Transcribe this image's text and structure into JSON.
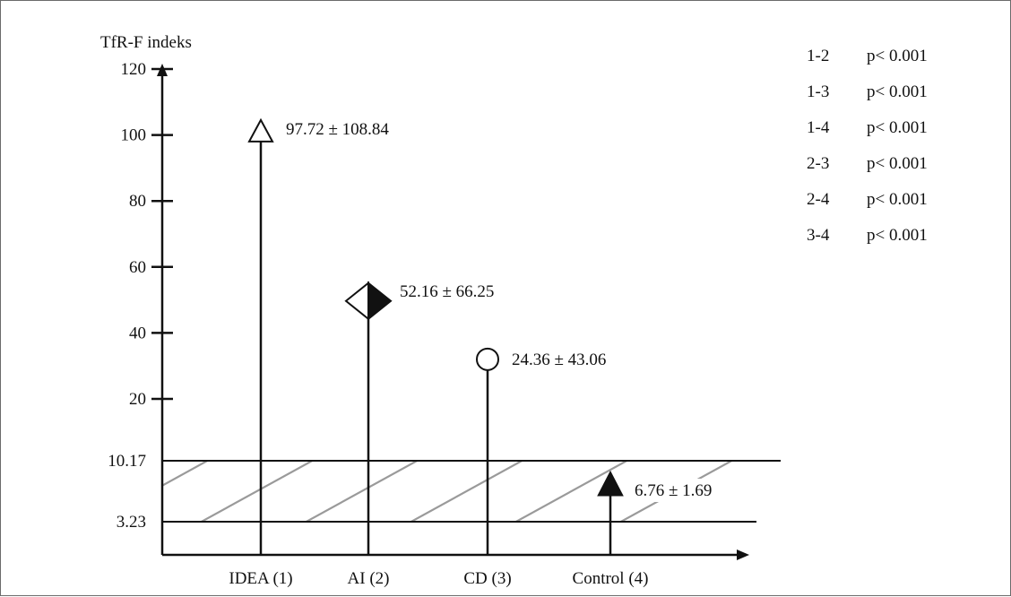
{
  "chart_data": {
    "type": "scatter",
    "ylabel": "TfR-F indeks",
    "yticks": [
      20,
      40,
      60,
      80,
      100,
      120
    ],
    "ylim": [
      0,
      120
    ],
    "categories": [
      "IDEA (1)",
      "AI (2)",
      "CD (3)",
      "Control (4)"
    ],
    "series": [
      {
        "label": "IDEA (1)",
        "value": 104,
        "annotation": "97.72 ± 108.84",
        "marker": "triangle-open"
      },
      {
        "label": "AI (2)",
        "value": 50.5,
        "annotation": "52.16 ± 66.25",
        "marker": "diamond-half"
      },
      {
        "label": "CD (3)",
        "value": 32,
        "annotation": "24.36 ± 43.06",
        "marker": "circle-open"
      },
      {
        "label": "Control (4)",
        "value": 6.76,
        "annotation": "6.76 ± 1.69",
        "marker": "triangle-filled"
      }
    ],
    "reference_band": {
      "lower": 3.23,
      "upper": 10.17,
      "lower_label": "3.23",
      "upper_label": "10.17",
      "pattern": "diagonal-hatch"
    },
    "comparisons": [
      {
        "pair": "1-2",
        "p": "p< 0.001"
      },
      {
        "pair": "1-3",
        "p": "p< 0.001"
      },
      {
        "pair": "1-4",
        "p": "p< 0.001"
      },
      {
        "pair": "2-3",
        "p": "p< 0.001"
      },
      {
        "pair": "2-4",
        "p": "p< 0.001"
      },
      {
        "pair": "3-4",
        "p": "p< 0.001"
      }
    ],
    "colors": {
      "axis": "#111111",
      "hatch": "#9a9a9a",
      "frame": "#6b6b6b"
    }
  }
}
